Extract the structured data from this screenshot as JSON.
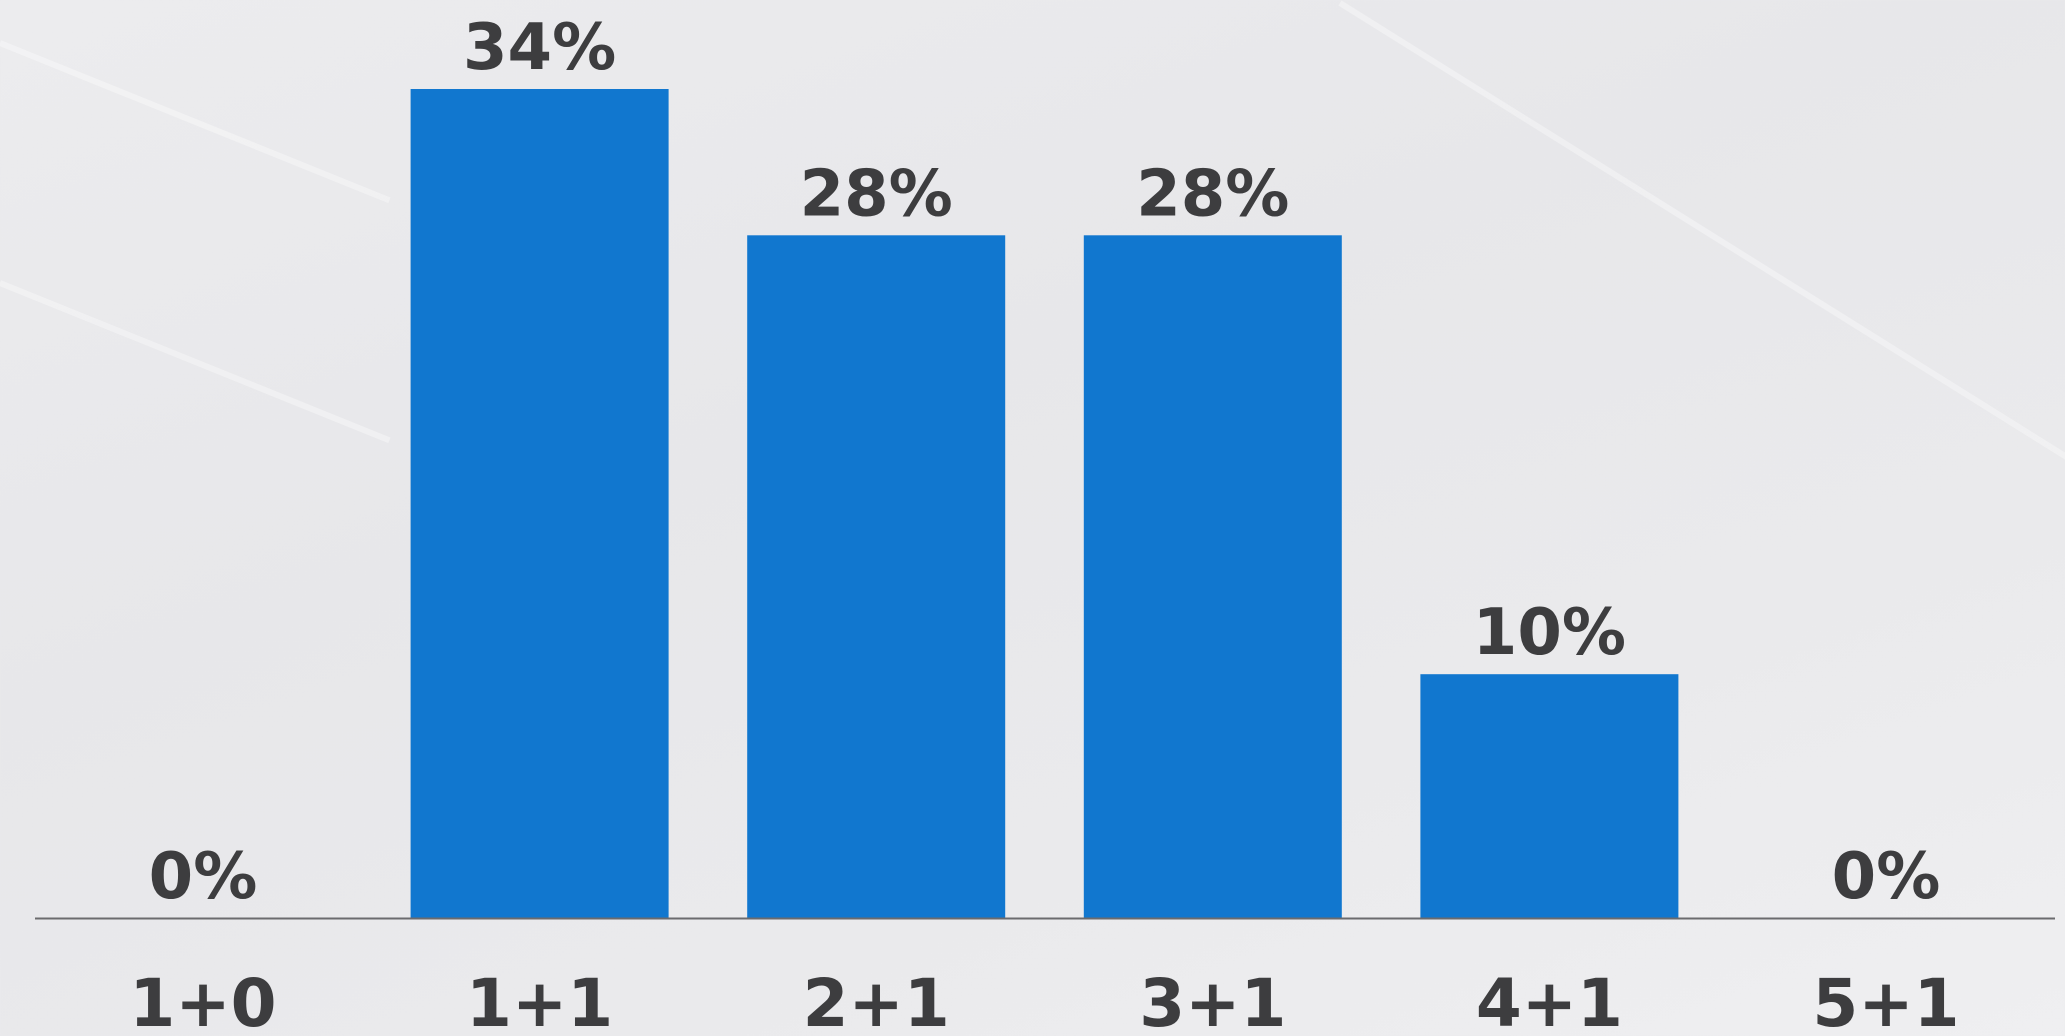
{
  "chart_data": {
    "type": "bar",
    "categories": [
      "1+0",
      "1+1",
      "2+1",
      "3+1",
      "4+1",
      "5+1"
    ],
    "values": [
      0,
      34,
      28,
      28,
      10,
      0
    ],
    "value_labels": [
      "0%",
      "34%",
      "28%",
      "28%",
      "10%",
      "0%"
    ],
    "ylim": [
      0,
      34
    ],
    "bar_color": "#1177cf",
    "label_color": "#3d3d3f",
    "axis_color": "#6b6b6e",
    "grid": false,
    "legend": "none"
  }
}
